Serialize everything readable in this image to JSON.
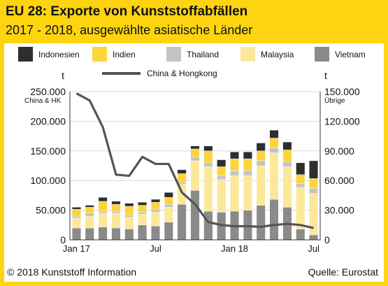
{
  "header": {
    "title": "EU 28: Exporte von Kunststoffabfällen",
    "subtitle": "2017 - 2018, ausgewählte asiatische Länder"
  },
  "footer": {
    "copyright": "© 2018 Kunststoff Information",
    "source": "Quelle: Eurostat"
  },
  "colors": {
    "background": "#fdd40f",
    "line": "#555555",
    "grid": "#d9d9d9"
  },
  "chart_data": {
    "type": "bar",
    "categories": [
      "Jan 17",
      "Feb 17",
      "Mar 17",
      "Apr 17",
      "May 17",
      "Jun 17",
      "Jul 17",
      "Aug 17",
      "Sep 17",
      "Oct 17",
      "Nov 17",
      "Dec 17",
      "Jan 18",
      "Feb 18",
      "Mar 18",
      "Apr 18",
      "May 18",
      "Jun 18",
      "Jul 18"
    ],
    "x_tick_labels": [
      {
        "category": 0,
        "label": "Jan 17"
      },
      {
        "category": 6,
        "label": "Jul"
      },
      {
        "category": 12,
        "label": "Jan 18"
      },
      {
        "category": 18,
        "label": "Jul"
      }
    ],
    "stack_series": [
      {
        "name": "Vietnam",
        "color": "#8a8a8a",
        "values": [
          12000,
          12000,
          13000,
          12000,
          11000,
          15000,
          14000,
          18000,
          36000,
          50000,
          29000,
          28000,
          29000,
          30000,
          35000,
          41000,
          33000,
          11000,
          5000
        ]
      },
      {
        "name": "Malaysia",
        "color": "#fce89a",
        "values": [
          10000,
          12000,
          14000,
          15000,
          12000,
          11000,
          14000,
          15000,
          20000,
          30000,
          45000,
          33000,
          36000,
          35000,
          40000,
          47000,
          41000,
          42000,
          42000
        ]
      },
      {
        "name": "Thailand",
        "color": "#c4c4c4",
        "values": [
          2000,
          3000,
          2000,
          2000,
          2000,
          2000,
          3000,
          3000,
          2000,
          4000,
          4000,
          4000,
          5000,
          5000,
          5000,
          5000,
          5000,
          4000,
          5000
        ]
      },
      {
        "name": "Indien",
        "color": "#fcd53d",
        "values": [
          7000,
          6000,
          10000,
          7000,
          9000,
          7000,
          7000,
          7000,
          9000,
          8000,
          12000,
          9000,
          12000,
          12000,
          10000,
          10000,
          12000,
          9000,
          10000
        ]
      },
      {
        "name": "Indonesien",
        "color": "#2e2e2e",
        "values": [
          2000,
          2000,
          4000,
          3000,
          3000,
          3000,
          3000,
          5000,
          4000,
          3000,
          5000,
          7000,
          7000,
          7000,
          8000,
          8000,
          8000,
          12000,
          18000
        ]
      }
    ],
    "line_series": {
      "name": "China & Hongkong",
      "axis": "left",
      "values": [
        247000,
        235000,
        190000,
        110000,
        108000,
        140000,
        128000,
        128000,
        80000,
        60000,
        30000,
        25000,
        23000,
        23000,
        22000,
        25000,
        27000,
        25000,
        20000
      ]
    },
    "left_axis": {
      "unit": "t",
      "sublabel": "China & HK",
      "min": 0,
      "max": 250000,
      "ticks": [
        "0",
        "50.000",
        "100.000",
        "150.000",
        "200.000",
        "250.000"
      ]
    },
    "right_axis": {
      "unit": "t",
      "sublabel": "Übrige",
      "min": 0,
      "max": 150000,
      "ticks": [
        "0",
        "30.000",
        "60.000",
        "90.000",
        "120.000",
        "150.000"
      ]
    },
    "grid": true,
    "legend": {
      "stack_order": [
        "Indonesien",
        "Indien",
        "Thailand",
        "Malaysia",
        "Vietnam"
      ],
      "line_label": "China & Hongkong",
      "placement": "top"
    }
  }
}
